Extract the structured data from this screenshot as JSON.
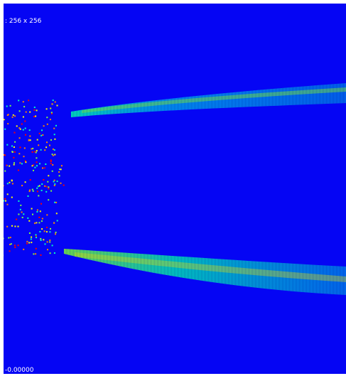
{
  "viewer": {
    "dimensions_label": ": 256 x 256",
    "min_value_label": "-0.00000"
  },
  "colors": {
    "background": "#0505F4",
    "colormap": [
      "#0000FF",
      "#00BFFF",
      "#00FFC0",
      "#7FFF40",
      "#FFFF00",
      "#FF8000",
      "#FF0000"
    ],
    "overlay_text": "#FFFFFF"
  }
}
